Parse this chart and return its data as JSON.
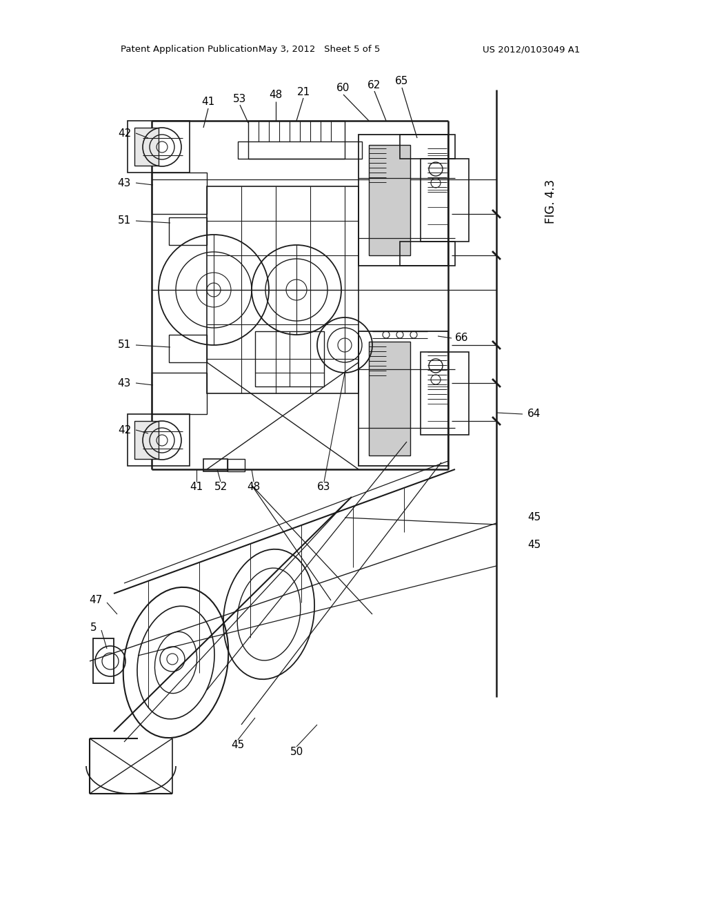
{
  "bg_color": "#ffffff",
  "header_left": "Patent Application Publication",
  "header_center": "May 3, 2012   Sheet 5 of 5",
  "header_right": "US 2012/0103049 A1",
  "fig_label": "FIG. 4.3",
  "line_color": "#1a1a1a",
  "text_color": "#000000"
}
